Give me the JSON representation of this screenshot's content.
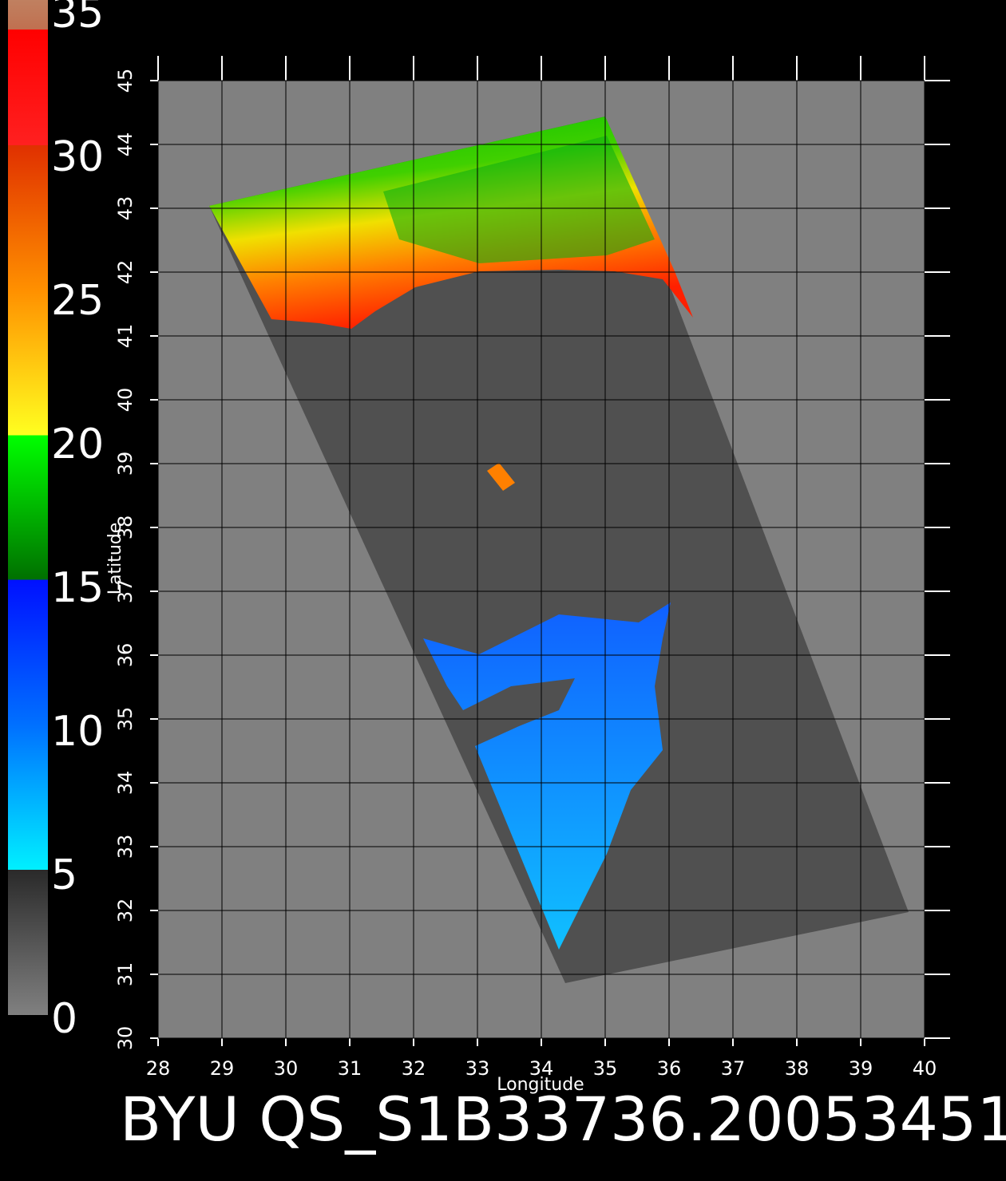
{
  "chart_data": {
    "type": "map",
    "title": "BYU QS_S1B33736.20053451",
    "x_label": "Longitude",
    "y_label": "Latitude",
    "xlim": [
      28,
      40
    ],
    "ylim": [
      30,
      45
    ],
    "xticks": [
      28,
      29,
      30,
      31,
      32,
      33,
      34,
      35,
      36,
      37,
      38,
      39,
      40
    ],
    "yticks": [
      30,
      31,
      32,
      33,
      34,
      35,
      36,
      37,
      38,
      39,
      40,
      41,
      42,
      43,
      44,
      45
    ],
    "grid": true,
    "colorbar": {
      "range": [
        0,
        35
      ],
      "ticks": [
        0,
        5,
        10,
        15,
        20,
        25,
        30,
        35
      ]
    }
  }
}
